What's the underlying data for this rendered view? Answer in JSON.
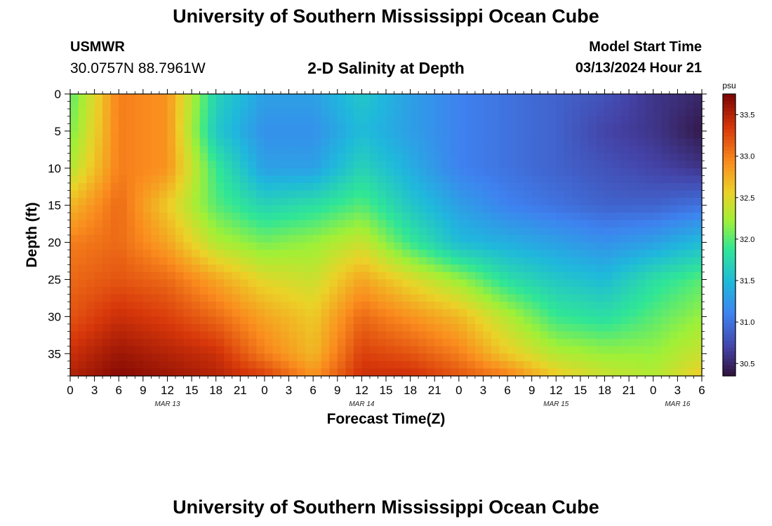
{
  "header": {
    "title": "University of Southern Mississippi Ocean Cube",
    "station": "USMWR",
    "coords": "30.0757N  88.7961W",
    "subtitle": "2-D Salinity at Depth",
    "model_label": "Model Start Time",
    "model_time": "03/13/2024 Hour 21"
  },
  "footer": {
    "title": "University of Southern Mississippi Ocean Cube"
  },
  "chart_data": {
    "type": "heatmap",
    "title": "2-D Salinity at Depth",
    "xlabel": "Forecast Time(Z)",
    "ylabel": "Depth (ft)",
    "x_tick_labels": [
      "0",
      "3",
      "6",
      "9",
      "12",
      "15",
      "18",
      "21",
      "0",
      "3",
      "6",
      "9",
      "12",
      "15",
      "18",
      "21",
      "0",
      "3",
      "6",
      "9",
      "12",
      "15",
      "18",
      "21",
      "0",
      "3",
      "6"
    ],
    "x_date_labels": [
      {
        "label": "MAR 13",
        "hour": 12
      },
      {
        "label": "MAR 14",
        "hour": 36
      },
      {
        "label": "MAR 15",
        "hour": 60
      },
      {
        "label": "MAR 16",
        "hour": 75
      }
    ],
    "x_range_hours": [
      0,
      78
    ],
    "y_ticks": [
      0,
      5,
      10,
      15,
      20,
      25,
      30,
      35
    ],
    "ylim": [
      0,
      38
    ],
    "y_inverted": true,
    "colorbar": {
      "unit": "psu",
      "ticks": [
        30.5,
        31.0,
        31.5,
        32.0,
        32.5,
        33.0,
        33.5
      ],
      "range": [
        30.35,
        33.75
      ]
    },
    "grid_x_hours": [
      0,
      6,
      12,
      18,
      24,
      30,
      36,
      42,
      48,
      54,
      60,
      66,
      72,
      78
    ],
    "grid_y_depths": [
      0,
      5,
      10,
      15,
      20,
      25,
      30,
      35,
      38
    ],
    "values_psu": [
      [
        32.0,
        33.0,
        32.9,
        31.7,
        31.3,
        31.3,
        31.6,
        31.3,
        31.1,
        31.0,
        30.9,
        30.8,
        30.6,
        30.5
      ],
      [
        32.1,
        33.0,
        32.9,
        31.6,
        31.2,
        31.2,
        31.5,
        31.3,
        31.1,
        31.0,
        30.9,
        30.7,
        30.6,
        30.4
      ],
      [
        32.3,
        33.0,
        32.9,
        31.9,
        31.3,
        31.3,
        31.7,
        31.4,
        31.1,
        31.0,
        30.9,
        30.8,
        30.7,
        30.6
      ],
      [
        32.7,
        33.1,
        32.6,
        32.0,
        31.7,
        31.8,
        32.0,
        31.6,
        31.3,
        31.1,
        31.0,
        30.9,
        30.9,
        31.0
      ],
      [
        33.0,
        33.1,
        32.8,
        32.3,
        32.1,
        32.2,
        32.4,
        31.9,
        31.5,
        31.4,
        31.3,
        31.2,
        31.3,
        31.5
      ],
      [
        33.1,
        33.2,
        33.1,
        32.8,
        32.5,
        32.4,
        32.8,
        32.5,
        32.2,
        31.8,
        31.6,
        31.5,
        31.8,
        32.0
      ],
      [
        33.2,
        33.4,
        33.3,
        33.1,
        32.8,
        32.6,
        33.1,
        32.9,
        32.7,
        32.3,
        31.9,
        31.8,
        32.0,
        32.2
      ],
      [
        33.4,
        33.6,
        33.5,
        33.4,
        33.0,
        32.7,
        33.3,
        33.2,
        33.0,
        32.6,
        32.3,
        32.2,
        32.2,
        32.4
      ],
      [
        33.5,
        33.7,
        33.6,
        33.5,
        33.3,
        32.9,
        33.4,
        33.4,
        33.2,
        33.0,
        32.6,
        32.4,
        32.3,
        32.6
      ]
    ]
  }
}
